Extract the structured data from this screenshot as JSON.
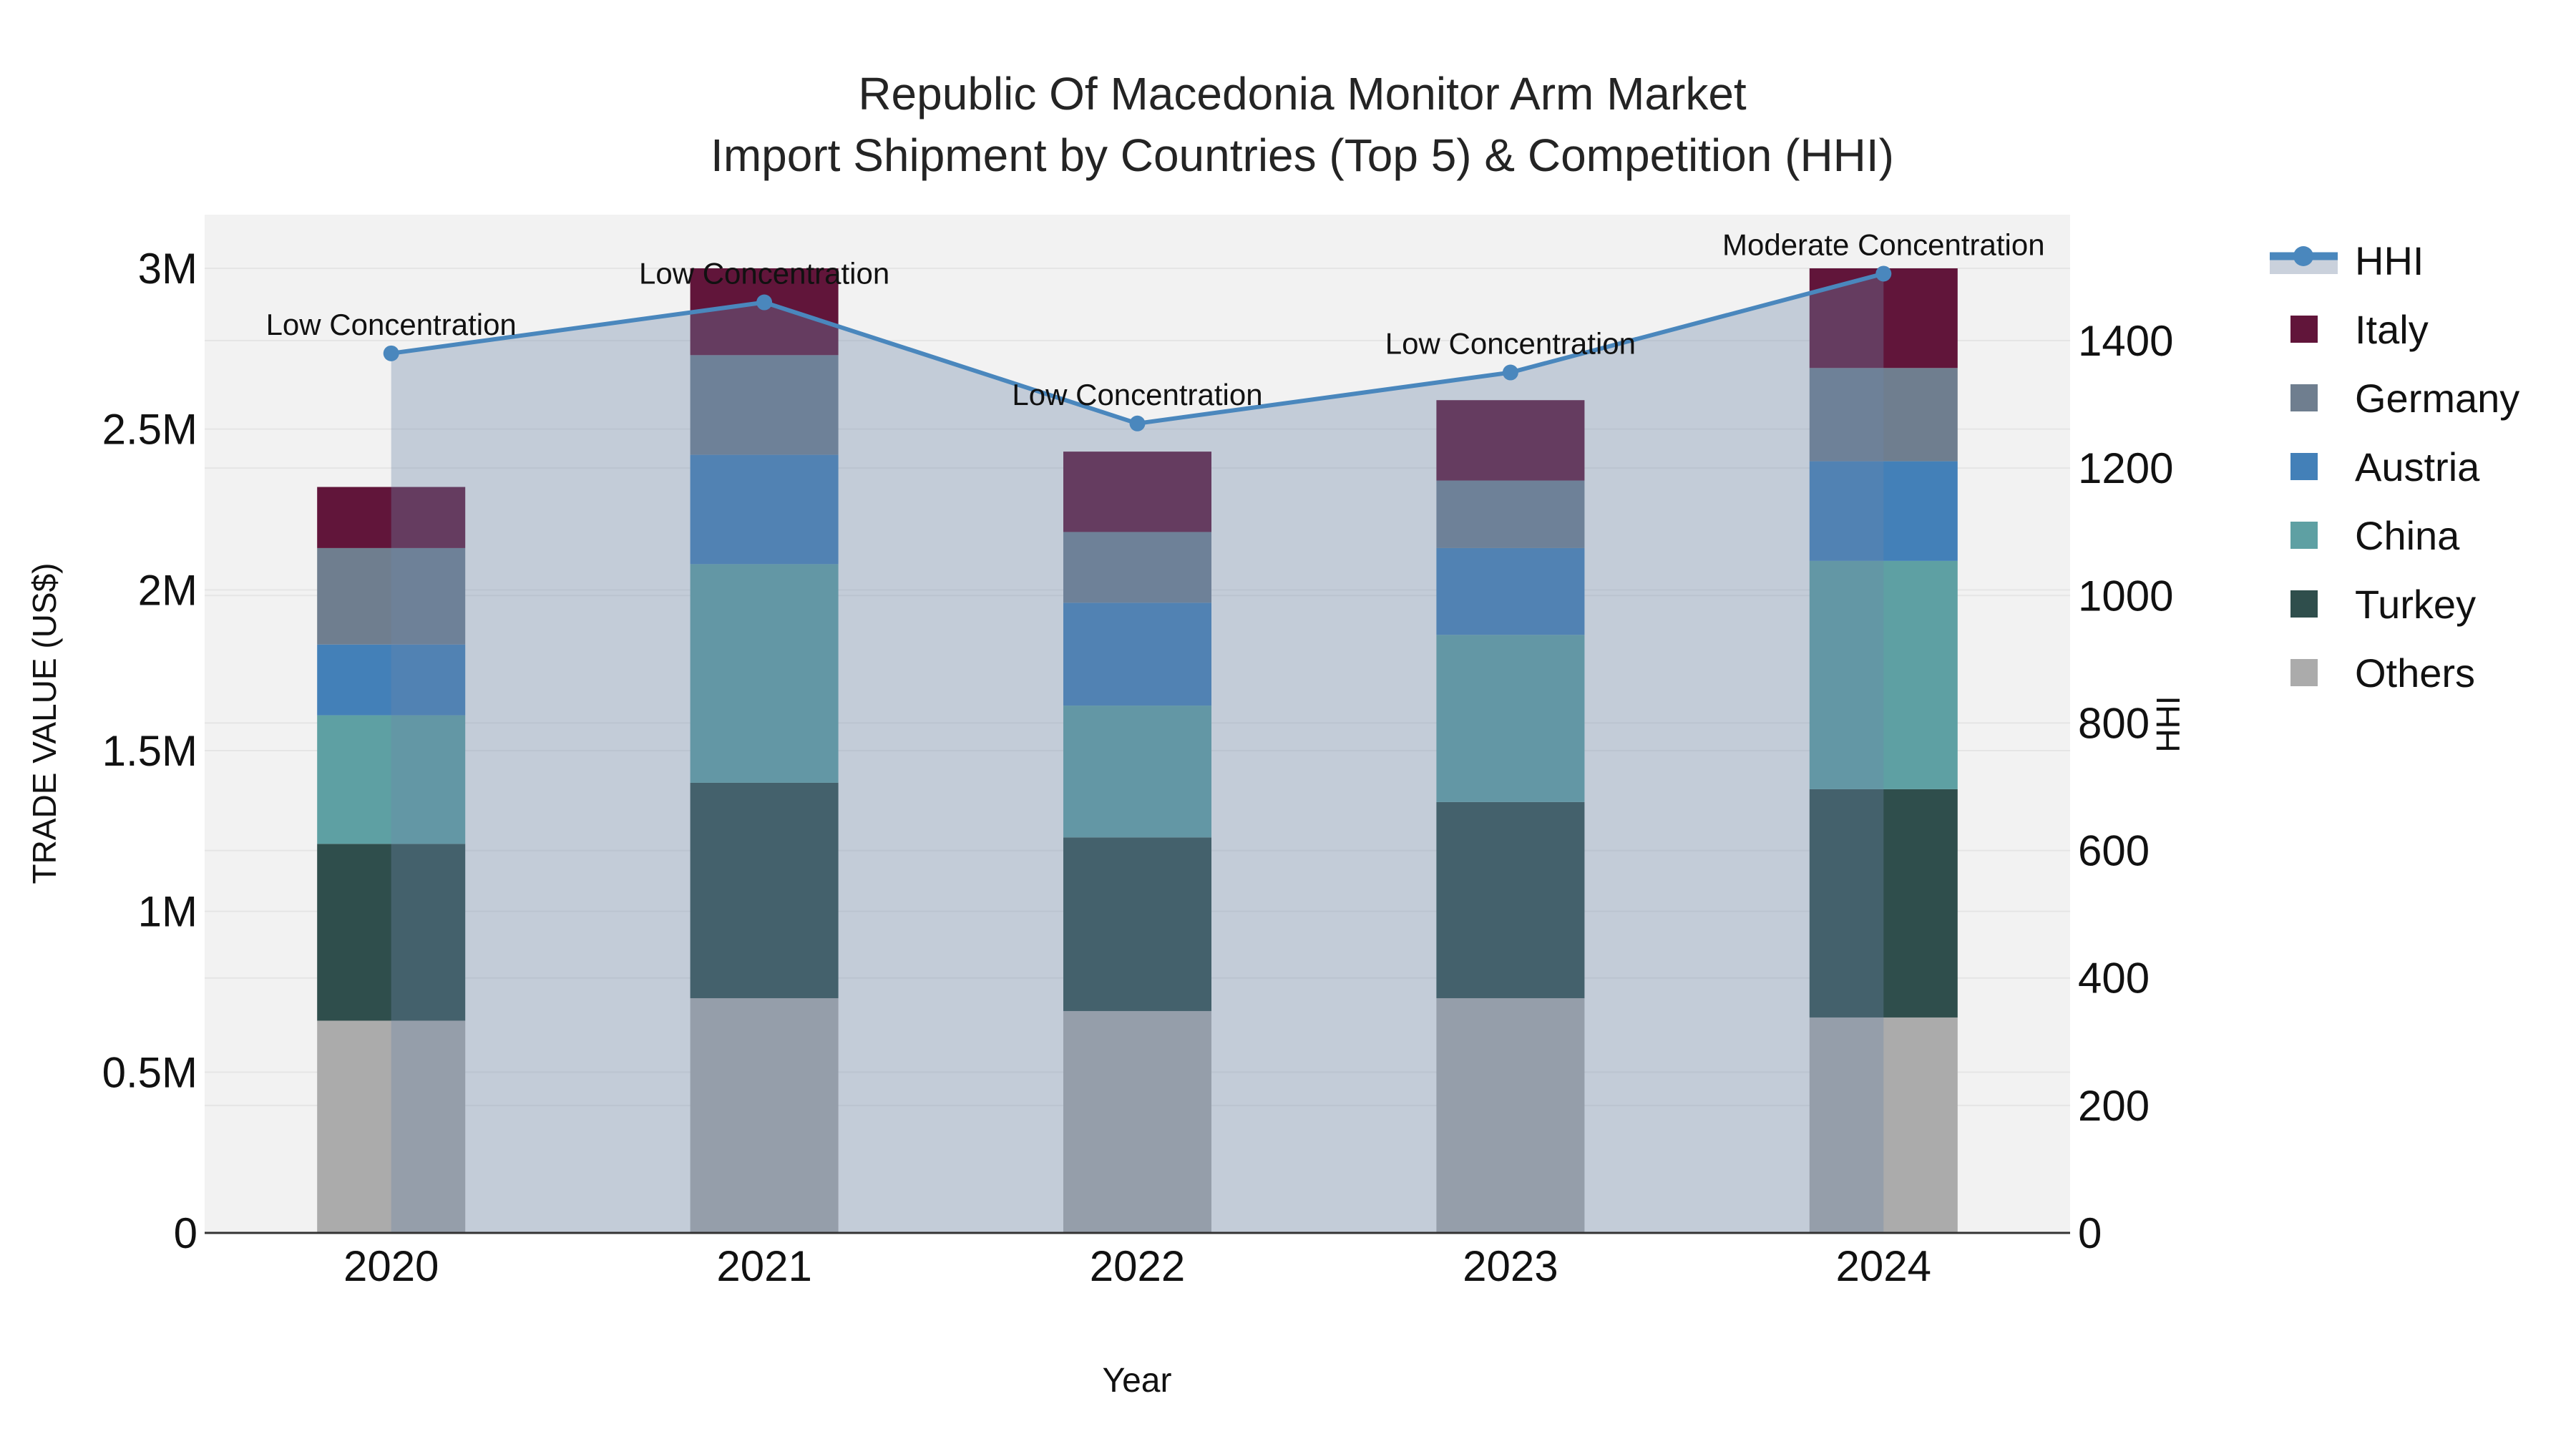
{
  "figure": {
    "title_line1": "Republic Of Macedonia Monitor Arm Market",
    "title_line2": "Import Shipment by Countries (Top 5) & Competition (HHI)"
  },
  "colors": {
    "plot_background": "#F2F2F2",
    "gridline": "#E5E5E5",
    "axis_line": "#333333",
    "text": "#111111",
    "title_text": "#242424",
    "hhi_line": "#4A87BD",
    "hhi_fill": "rgba(108,134,168,0.35)",
    "legend_fill_band": "#CAD1DC"
  },
  "chart_data": {
    "type": "combo: stacked-bar + line(area)",
    "title": "Republic Of Macedonia Monitor Arm Market — Import Shipment by Countries (Top 5) & Competition (HHI)",
    "xlabel": "Year",
    "ylabel_left": "TRADE VALUE (US$)",
    "ylabel_right": "HHI",
    "categories": [
      "2020",
      "2021",
      "2022",
      "2023",
      "2024"
    ],
    "bar_unit": "million US$",
    "stack_order_bottom_to_top": [
      "Others",
      "Turkey",
      "China",
      "Austria",
      "Germany",
      "Italy"
    ],
    "series": [
      {
        "name": "Others",
        "color": "#ABABAB",
        "values_musd": [
          0.66,
          0.73,
          0.69,
          0.73,
          0.67
        ]
      },
      {
        "name": "Turkey",
        "color": "#2F4E4C",
        "values_musd": [
          0.55,
          0.67,
          0.54,
          0.61,
          0.71
        ]
      },
      {
        "name": "China",
        "color": "#5EA0A3",
        "values_musd": [
          0.4,
          0.68,
          0.41,
          0.52,
          0.71
        ]
      },
      {
        "name": "Austria",
        "color": "#4380B8",
        "values_musd": [
          0.22,
          0.34,
          0.32,
          0.27,
          0.31
        ]
      },
      {
        "name": "Germany",
        "color": "#6F7E8F",
        "values_musd": [
          0.3,
          0.31,
          0.22,
          0.21,
          0.29
        ]
      },
      {
        "name": "Italy",
        "color": "#61153A",
        "values_musd": [
          0.19,
          0.27,
          0.25,
          0.25,
          0.31
        ]
      }
    ],
    "bar_totals_musd": [
      2.32,
      3.0,
      2.43,
      2.59,
      3.0
    ],
    "hhi": {
      "name": "HHI",
      "values": [
        1380,
        1460,
        1270,
        1350,
        1505
      ],
      "line_color": "#4A87BD",
      "fill_color": "rgba(108,134,168,0.35)",
      "marker": "circle"
    },
    "annotations": [
      {
        "category": "2020",
        "text": "Low Concentration"
      },
      {
        "category": "2021",
        "text": "Low Concentration"
      },
      {
        "category": "2022",
        "text": "Low Concentration"
      },
      {
        "category": "2023",
        "text": "Low Concentration"
      },
      {
        "category": "2024",
        "text": "Moderate Concentration"
      }
    ],
    "y_left_axis": {
      "ticks": [
        0,
        0.5,
        1,
        1.5,
        2,
        2.5,
        3
      ],
      "tick_labels": [
        "0",
        "0.5M",
        "1M",
        "1.5M",
        "2M",
        "2.5M",
        "3M"
      ],
      "range_musd": [
        0,
        3.17
      ],
      "grid": true
    },
    "y_right_axis": {
      "ticks": [
        0,
        200,
        400,
        600,
        800,
        1000,
        1200,
        1400
      ],
      "tick_labels": [
        "0",
        "200",
        "400",
        "600",
        "800",
        "1000",
        "1200",
        "1400"
      ],
      "range": [
        0,
        1600
      ],
      "grid": true
    },
    "legend_position": "right"
  },
  "legend": {
    "order": [
      "HHI",
      "Italy",
      "Germany",
      "Austria",
      "China",
      "Turkey",
      "Others"
    ]
  }
}
